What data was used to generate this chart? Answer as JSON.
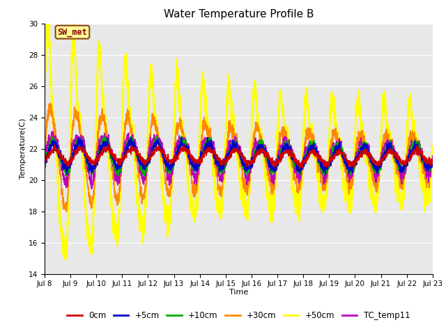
{
  "title": "Water Temperature Profile B",
  "xlabel": "Time",
  "ylabel": "Temperature(C)",
  "ylim": [
    14,
    30
  ],
  "yticks": [
    14,
    16,
    18,
    20,
    22,
    24,
    26,
    28,
    30
  ],
  "x_tick_labels": [
    "Jul 8",
    "Jul 9",
    "Jul 10",
    "Jul 11",
    "Jul 12",
    "Jul 13",
    "Jul 14",
    "Jul 15",
    "Jul 16",
    "Jul 17",
    "Jul 18",
    "Jul 19",
    "Jul 20",
    "Jul 21",
    "Jul 22",
    "Jul 23"
  ],
  "annotation_text": "SW_met",
  "annotation_color": "#8B0000",
  "annotation_bg": "#FFFF99",
  "annotation_border": "#8B4513",
  "series": {
    "0cm": {
      "color": "#CC0000",
      "lw": 1.3
    },
    "+5cm": {
      "color": "#0000CC",
      "lw": 1.3
    },
    "+10cm": {
      "color": "#00AA00",
      "lw": 1.3
    },
    "+30cm": {
      "color": "#FF8800",
      "lw": 1.3
    },
    "+50cm": {
      "color": "#FFFF00",
      "lw": 1.8
    },
    "TC_temp11": {
      "color": "#BB00BB",
      "lw": 1.3
    }
  },
  "bg_color": "#E8E8E8",
  "fig_bg": "#FFFFFF",
  "title_fontsize": 11,
  "axis_label_fontsize": 8,
  "tick_fontsize": 7.5,
  "legend_fontsize": 8.5
}
